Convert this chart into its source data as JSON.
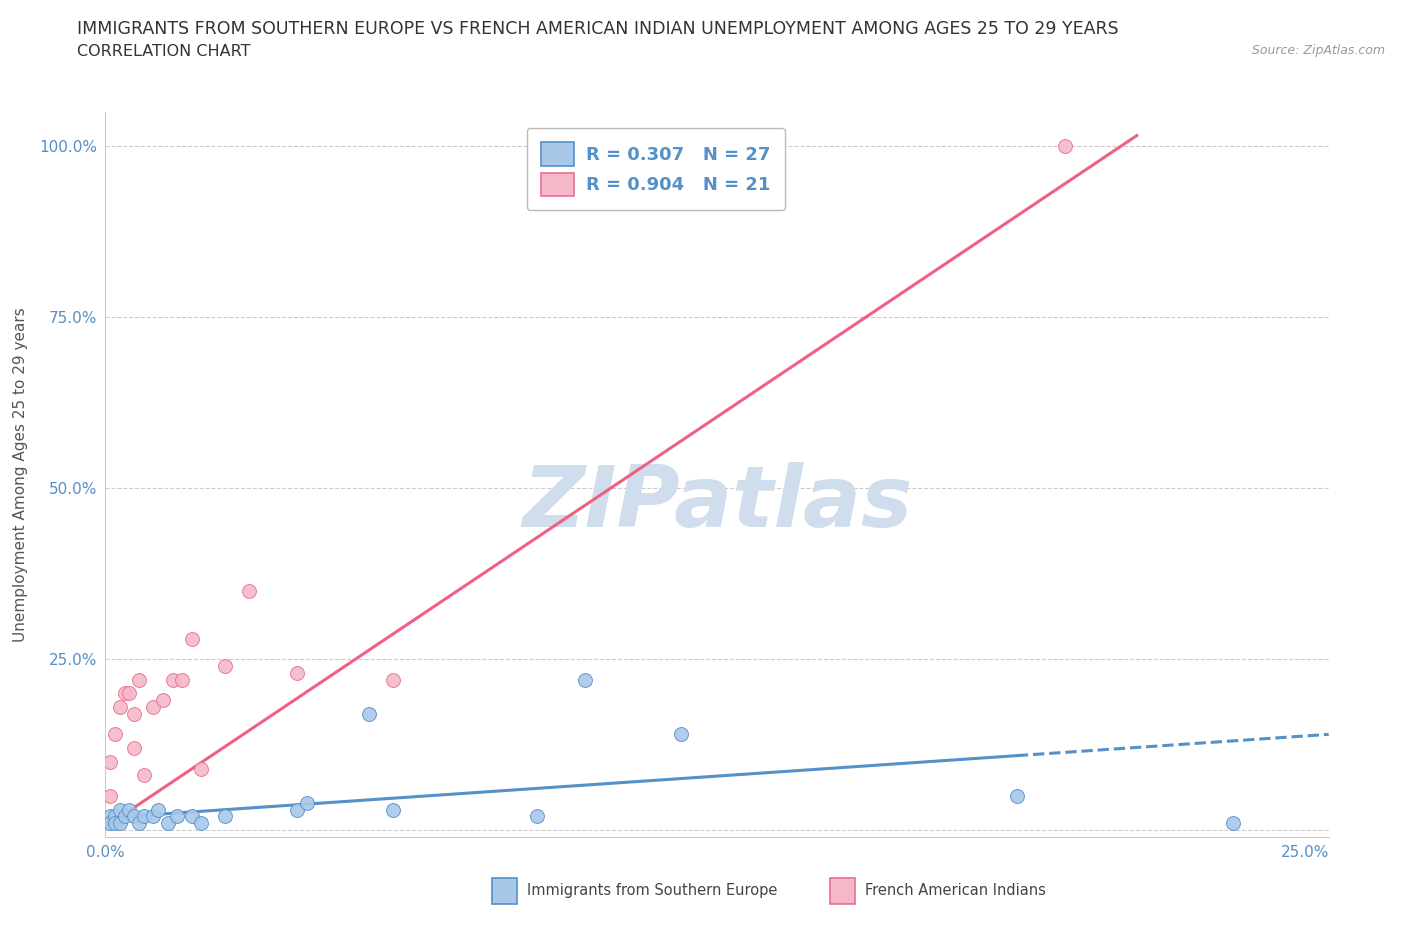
{
  "title": "IMMIGRANTS FROM SOUTHERN EUROPE VS FRENCH AMERICAN INDIAN UNEMPLOYMENT AMONG AGES 25 TO 29 YEARS",
  "subtitle": "CORRELATION CHART",
  "source": "Source: ZipAtlas.com",
  "ylabel": "Unemployment Among Ages 25 to 29 years",
  "xlim": [
    0.0,
    0.255
  ],
  "ylim": [
    -0.01,
    1.05
  ],
  "xticks": [
    0.0,
    0.05,
    0.1,
    0.15,
    0.2,
    0.25
  ],
  "yticks": [
    0.0,
    0.25,
    0.5,
    0.75,
    1.0
  ],
  "xticklabels": [
    "0.0%",
    "",
    "",
    "",
    "",
    "25.0%"
  ],
  "yticklabels": [
    "",
    "25.0%",
    "50.0%",
    "75.0%",
    "100.0%"
  ],
  "blue_R": 0.307,
  "blue_N": 27,
  "pink_R": 0.904,
  "pink_N": 21,
  "blue_scatter_color": "#a8c8ea",
  "pink_scatter_color": "#f5b8c8",
  "blue_edge_color": "#5590c8",
  "pink_edge_color": "#e87090",
  "blue_line_color": "#5590c8",
  "pink_line_color": "#f06080",
  "legend_label_blue": "Immigrants from Southern Europe",
  "legend_label_pink": "French American Indians",
  "blue_scatter_x": [
    0.001,
    0.001,
    0.002,
    0.002,
    0.003,
    0.003,
    0.004,
    0.005,
    0.006,
    0.007,
    0.008,
    0.01,
    0.011,
    0.013,
    0.015,
    0.018,
    0.02,
    0.025,
    0.04,
    0.042,
    0.055,
    0.06,
    0.09,
    0.1,
    0.12,
    0.19,
    0.235
  ],
  "blue_scatter_y": [
    0.02,
    0.01,
    0.02,
    0.01,
    0.03,
    0.01,
    0.02,
    0.03,
    0.02,
    0.01,
    0.02,
    0.02,
    0.03,
    0.01,
    0.02,
    0.02,
    0.01,
    0.02,
    0.03,
    0.04,
    0.17,
    0.03,
    0.02,
    0.22,
    0.14,
    0.05,
    0.01
  ],
  "pink_scatter_x": [
    0.001,
    0.001,
    0.002,
    0.003,
    0.004,
    0.005,
    0.006,
    0.006,
    0.007,
    0.008,
    0.01,
    0.012,
    0.014,
    0.016,
    0.018,
    0.02,
    0.025,
    0.03,
    0.04,
    0.06,
    0.2
  ],
  "pink_scatter_y": [
    0.1,
    0.05,
    0.14,
    0.18,
    0.2,
    0.2,
    0.17,
    0.12,
    0.22,
    0.08,
    0.18,
    0.19,
    0.22,
    0.22,
    0.28,
    0.09,
    0.24,
    0.35,
    0.23,
    0.22,
    1.0
  ],
  "blue_trend_x": [
    0.0,
    0.255
  ],
  "blue_trend_y": [
    0.018,
    0.14
  ],
  "pink_trend_x": [
    0.0,
    0.215
  ],
  "pink_trend_y": [
    0.005,
    1.015
  ],
  "grid_color": "#cccccc",
  "bg_color": "#ffffff",
  "title_fontsize": 12.5,
  "subtitle_fontsize": 11.5,
  "source_fontsize": 9,
  "legend_fontsize": 13,
  "ylabel_fontsize": 11,
  "tick_fontsize": 11,
  "tick_color": "#5590c8",
  "watermark_text": "ZIPatlas",
  "watermark_color": "#d0dded"
}
